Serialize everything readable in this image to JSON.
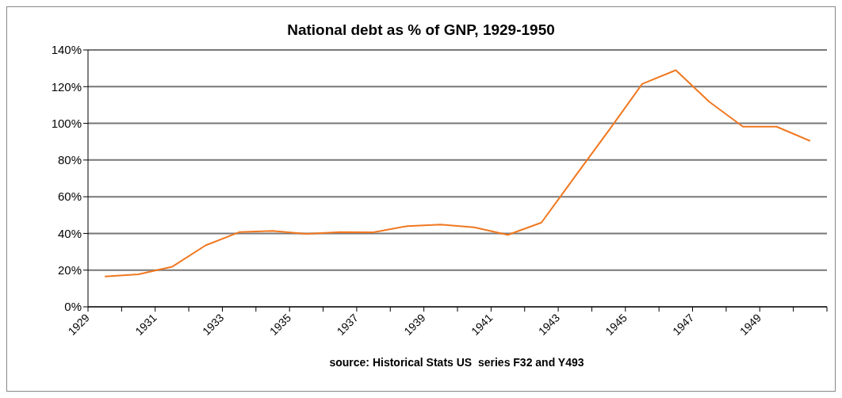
{
  "chart_data": {
    "type": "line",
    "title": "National debt as % of GNP, 1929-1950",
    "x": [
      1929.5,
      1930.5,
      1931.5,
      1932.5,
      1933.5,
      1934.5,
      1935.5,
      1936.5,
      1937.5,
      1938.5,
      1939.5,
      1940.5,
      1941.5,
      1942.5,
      1943.5,
      1944.5,
      1945.5,
      1946.5,
      1947.5,
      1948.5,
      1949.5,
      1950.5
    ],
    "series": [
      {
        "color": "#f07820",
        "values": [
          16.5,
          17.7,
          21.8,
          33.5,
          40.7,
          41.4,
          39.8,
          40.7,
          40.6,
          44,
          44.8,
          43.3,
          39.2,
          45.9,
          71,
          96,
          121.5,
          129,
          111.7,
          98.2,
          98.2,
          90.4
        ]
      }
    ],
    "xlim": [
      1929,
      1951
    ],
    "xticks": [
      {
        "value": 1929,
        "label": "1929"
      },
      {
        "value": 1930,
        "label": null
      },
      {
        "value": 1931,
        "label": "1931"
      },
      {
        "value": 1932,
        "label": null
      },
      {
        "value": 1933,
        "label": "1933"
      },
      {
        "value": 1934,
        "label": null
      },
      {
        "value": 1935,
        "label": "1935"
      },
      {
        "value": 1936,
        "label": null
      },
      {
        "value": 1937,
        "label": "1937"
      },
      {
        "value": 1938,
        "label": null
      },
      {
        "value": 1939,
        "label": "1939"
      },
      {
        "value": 1940,
        "label": null
      },
      {
        "value": 1941,
        "label": "1941"
      },
      {
        "value": 1942,
        "label": null
      },
      {
        "value": 1943,
        "label": "1943"
      },
      {
        "value": 1944,
        "label": null
      },
      {
        "value": 1945,
        "label": "1945"
      },
      {
        "value": 1946,
        "label": null
      },
      {
        "value": 1947,
        "label": "1947"
      },
      {
        "value": 1948,
        "label": null
      },
      {
        "value": 1949,
        "label": "1949"
      },
      {
        "value": 1950,
        "label": null
      },
      {
        "value": 1951,
        "label": null
      }
    ],
    "ylim": [
      0,
      140
    ],
    "yticks": [
      {
        "value": 0,
        "label": "0%"
      },
      {
        "value": 20,
        "label": "20%"
      },
      {
        "value": 40,
        "label": "40%"
      },
      {
        "value": 60,
        "label": "60%"
      },
      {
        "value": 80,
        "label": "80%"
      },
      {
        "value": 100,
        "label": "100%"
      },
      {
        "value": 120,
        "label": "120%"
      },
      {
        "value": 140,
        "label": "140%"
      }
    ],
    "grid": "y",
    "legend": false,
    "marker": "none",
    "line_style": "solid",
    "annotations": [
      "source: Historical Stats US  series F32 and Y493"
    ]
  }
}
